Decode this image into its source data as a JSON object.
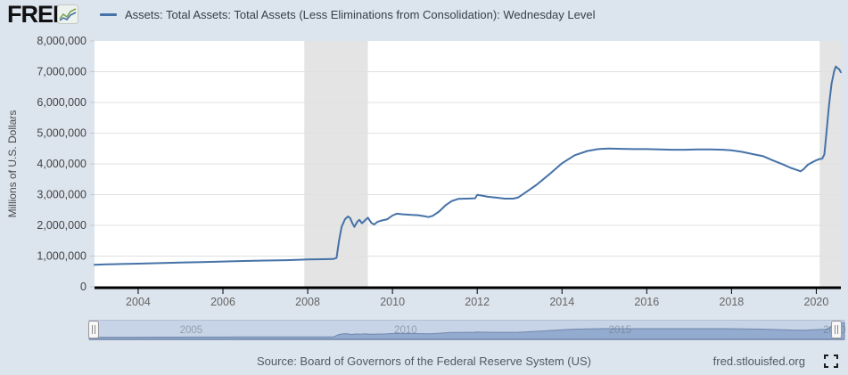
{
  "page": {
    "background": "#dce4ed"
  },
  "header": {
    "logo_text": "FRED",
    "logo_registered": "®"
  },
  "chart_data": {
    "type": "line",
    "title": "Assets: Total Assets: Total Assets (Less Eliminations from Consolidation): Wednesday Level",
    "xlabel": "",
    "ylabel": "Millions of U.S. Dollars",
    "xlim": [
      2002.97,
      2020.58
    ],
    "ylim": [
      0,
      8000000
    ],
    "grid": true,
    "legend_position": "top",
    "x_ticks": [
      {
        "value": 2004,
        "label": "2004"
      },
      {
        "value": 2006,
        "label": "2006"
      },
      {
        "value": 2008,
        "label": "2008"
      },
      {
        "value": 2010,
        "label": "2010"
      },
      {
        "value": 2012,
        "label": "2012"
      },
      {
        "value": 2014,
        "label": "2014"
      },
      {
        "value": 2016,
        "label": "2016"
      },
      {
        "value": 2018,
        "label": "2018"
      },
      {
        "value": 2020,
        "label": "2020"
      }
    ],
    "y_ticks": [
      {
        "value": 0,
        "label": "0"
      },
      {
        "value": 1000000,
        "label": "1,000,000"
      },
      {
        "value": 2000000,
        "label": "2,000,000"
      },
      {
        "value": 3000000,
        "label": "3,000,000"
      },
      {
        "value": 4000000,
        "label": "4,000,000"
      },
      {
        "value": 5000000,
        "label": "5,000,000"
      },
      {
        "value": 6000000,
        "label": "6,000,000"
      },
      {
        "value": 7000000,
        "label": "7,000,000"
      },
      {
        "value": 8000000,
        "label": "8,000,000"
      }
    ],
    "recession_bands": [
      {
        "start": 2007.92,
        "end": 2009.42
      },
      {
        "start": 2020.08,
        "end": 2020.58
      }
    ],
    "series": [
      {
        "points": [
          [
            2002.97,
            720000
          ],
          [
            2003.25,
            730000
          ],
          [
            2003.6,
            742000
          ],
          [
            2004.0,
            755000
          ],
          [
            2004.5,
            772000
          ],
          [
            2005.0,
            790000
          ],
          [
            2005.5,
            805000
          ],
          [
            2006.0,
            822000
          ],
          [
            2006.5,
            840000
          ],
          [
            2007.0,
            855000
          ],
          [
            2007.5,
            868000
          ],
          [
            2008.0,
            890000
          ],
          [
            2008.35,
            898000
          ],
          [
            2008.6,
            905000
          ],
          [
            2008.68,
            940000
          ],
          [
            2008.74,
            1500000
          ],
          [
            2008.8,
            1950000
          ],
          [
            2008.88,
            2200000
          ],
          [
            2008.95,
            2290000
          ],
          [
            2009.0,
            2240000
          ],
          [
            2009.05,
            2080000
          ],
          [
            2009.1,
            1950000
          ],
          [
            2009.17,
            2120000
          ],
          [
            2009.22,
            2180000
          ],
          [
            2009.28,
            2070000
          ],
          [
            2009.35,
            2160000
          ],
          [
            2009.42,
            2250000
          ],
          [
            2009.5,
            2080000
          ],
          [
            2009.57,
            2030000
          ],
          [
            2009.65,
            2120000
          ],
          [
            2009.75,
            2160000
          ],
          [
            2009.88,
            2200000
          ],
          [
            2010.0,
            2320000
          ],
          [
            2010.1,
            2380000
          ],
          [
            2010.25,
            2360000
          ],
          [
            2010.45,
            2340000
          ],
          [
            2010.6,
            2330000
          ],
          [
            2010.75,
            2300000
          ],
          [
            2010.85,
            2270000
          ],
          [
            2010.95,
            2310000
          ],
          [
            2011.1,
            2450000
          ],
          [
            2011.25,
            2650000
          ],
          [
            2011.4,
            2790000
          ],
          [
            2011.55,
            2860000
          ],
          [
            2011.75,
            2870000
          ],
          [
            2011.95,
            2880000
          ],
          [
            2012.0,
            2990000
          ],
          [
            2012.1,
            2970000
          ],
          [
            2012.25,
            2930000
          ],
          [
            2012.45,
            2900000
          ],
          [
            2012.65,
            2870000
          ],
          [
            2012.85,
            2870000
          ],
          [
            2012.97,
            2910000
          ],
          [
            2013.15,
            3080000
          ],
          [
            2013.4,
            3320000
          ],
          [
            2013.7,
            3660000
          ],
          [
            2014.0,
            4020000
          ],
          [
            2014.3,
            4280000
          ],
          [
            2014.6,
            4420000
          ],
          [
            2014.85,
            4480000
          ],
          [
            2015.1,
            4500000
          ],
          [
            2015.4,
            4490000
          ],
          [
            2015.7,
            4480000
          ],
          [
            2016.0,
            4480000
          ],
          [
            2016.3,
            4470000
          ],
          [
            2016.6,
            4460000
          ],
          [
            2016.9,
            4460000
          ],
          [
            2017.2,
            4470000
          ],
          [
            2017.5,
            4470000
          ],
          [
            2017.8,
            4460000
          ],
          [
            2018.0,
            4440000
          ],
          [
            2018.25,
            4390000
          ],
          [
            2018.5,
            4320000
          ],
          [
            2018.75,
            4250000
          ],
          [
            2019.0,
            4100000
          ],
          [
            2019.2,
            3990000
          ],
          [
            2019.4,
            3870000
          ],
          [
            2019.55,
            3800000
          ],
          [
            2019.63,
            3760000
          ],
          [
            2019.7,
            3830000
          ],
          [
            2019.8,
            3970000
          ],
          [
            2019.9,
            4050000
          ],
          [
            2020.0,
            4120000
          ],
          [
            2020.08,
            4160000
          ],
          [
            2020.14,
            4170000
          ],
          [
            2020.19,
            4310000
          ],
          [
            2020.24,
            5000000
          ],
          [
            2020.3,
            5900000
          ],
          [
            2020.36,
            6600000
          ],
          [
            2020.42,
            7010000
          ],
          [
            2020.46,
            7170000
          ],
          [
            2020.5,
            7120000
          ],
          [
            2020.54,
            7080000
          ],
          [
            2020.58,
            6980000
          ]
        ]
      }
    ]
  },
  "navigator": {
    "labels": [
      {
        "year": 2005,
        "label": "2005"
      },
      {
        "year": 2010,
        "label": "2010"
      },
      {
        "year": 2015,
        "label": "2015"
      },
      {
        "year": 2020,
        "label": "2020"
      }
    ]
  },
  "footer": {
    "source": "Source: Board of Governors of the Federal Reserve System (US)",
    "site": "fred.stlouisfed.org"
  },
  "colors": {
    "line": "#4572a7",
    "plot_background": "#ffffff",
    "recession_band": "#e4e4e4",
    "grid": "#e0e0e0",
    "axis": "#000000",
    "x_label": "#666666",
    "y_label": "#444444",
    "nav_track": "#c7d3e6",
    "nav_area": "#93abce",
    "nav_line": "#7188ae",
    "nav_label": "#6a7486"
  }
}
